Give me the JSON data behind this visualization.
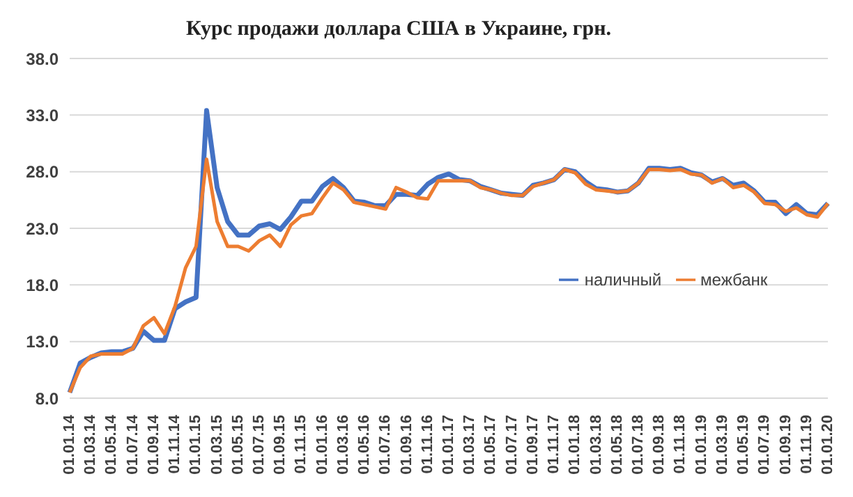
{
  "chart_data": {
    "type": "line",
    "title": "Курс продажи доллара США  в Украине, грн.",
    "categories": [
      "01.01.14",
      null,
      "01.03.14",
      null,
      "01.05.14",
      null,
      "01.07.14",
      null,
      "01.09.14",
      null,
      "01.11.14",
      null,
      "01.01.15",
      null,
      "01.03.15",
      null,
      "01.05.15",
      null,
      "01.07.15",
      null,
      "01.09.15",
      null,
      "01.11.15",
      null,
      "01.01.16",
      null,
      "01.03.16",
      null,
      "01.05.16",
      null,
      "01.07.16",
      null,
      "01.09.16",
      null,
      "01.11.16",
      null,
      "01.01.17",
      null,
      "01.03.17",
      null,
      "01.05.17",
      null,
      "01.07.17",
      null,
      "01.09.17",
      null,
      "01.11.17",
      null,
      "01.01.18",
      null,
      "01.03.18",
      null,
      "01.05.18",
      null,
      "01.07.18",
      null,
      "01.09.18",
      null,
      "01.11.18",
      null,
      "01.01.19",
      null,
      "01.03.19",
      null,
      "01.05.19",
      null,
      "01.07.19",
      null,
      "01.09.19",
      null,
      "01.11.19",
      null,
      "01.01.20"
    ],
    "series": [
      {
        "name": "наличный",
        "color": "#4472c4",
        "values": [
          8.5,
          11.1,
          11.6,
          12.0,
          12.1,
          12.1,
          12.4,
          13.9,
          13.1,
          13.1,
          15.9,
          16.5,
          16.9,
          33.4,
          26.6,
          23.6,
          22.4,
          22.4,
          23.2,
          23.4,
          22.9,
          24.0,
          25.4,
          25.4,
          26.7,
          27.4,
          26.6,
          25.4,
          25.3,
          25.0,
          25.0,
          26.0,
          26.0,
          25.9,
          26.9,
          27.5,
          27.8,
          27.3,
          27.2,
          26.7,
          26.4,
          26.1,
          26.0,
          25.9,
          26.8,
          27.0,
          27.3,
          28.2,
          28.0,
          27.1,
          26.5,
          26.4,
          26.2,
          26.3,
          27.0,
          28.3,
          28.3,
          28.2,
          28.3,
          27.9,
          27.7,
          27.1,
          27.4,
          26.8,
          27.0,
          26.3,
          25.3,
          25.3,
          24.3,
          25.1,
          24.3,
          24.2,
          25.2
        ]
      },
      {
        "name": "межбанк",
        "color": "#ed7d31",
        "values": [
          8.5,
          10.7,
          11.7,
          11.9,
          11.9,
          11.9,
          12.4,
          14.4,
          15.1,
          13.7,
          16.1,
          19.5,
          21.4,
          29.1,
          23.6,
          21.4,
          21.4,
          21.0,
          21.9,
          22.4,
          21.4,
          23.3,
          24.1,
          24.3,
          25.7,
          27.0,
          26.4,
          25.3,
          25.1,
          24.9,
          24.7,
          26.6,
          26.2,
          25.7,
          25.6,
          27.2,
          27.2,
          27.2,
          27.2,
          26.6,
          26.4,
          26.1,
          25.9,
          25.9,
          26.7,
          27.0,
          27.3,
          28.2,
          27.9,
          26.9,
          26.4,
          26.3,
          26.2,
          26.3,
          27.0,
          28.2,
          28.2,
          28.1,
          28.2,
          27.8,
          27.7,
          27.0,
          27.4,
          26.6,
          26.8,
          26.2,
          25.2,
          25.1,
          24.5,
          24.8,
          24.2,
          24.0,
          25.2
        ]
      }
    ],
    "ylim": [
      8,
      38
    ],
    "yticks": [
      {
        "value": 8,
        "label": "8.0"
      },
      {
        "value": 13,
        "label": "13.0"
      },
      {
        "value": 18,
        "label": "18.0"
      },
      {
        "value": 23,
        "label": "23.0"
      },
      {
        "value": 28,
        "label": "28.0"
      },
      {
        "value": 33,
        "label": "33.0"
      },
      {
        "value": 38,
        "label": "38.0"
      }
    ],
    "grid": "y",
    "legend": "center",
    "marker": "none",
    "line_style": "solid"
  }
}
